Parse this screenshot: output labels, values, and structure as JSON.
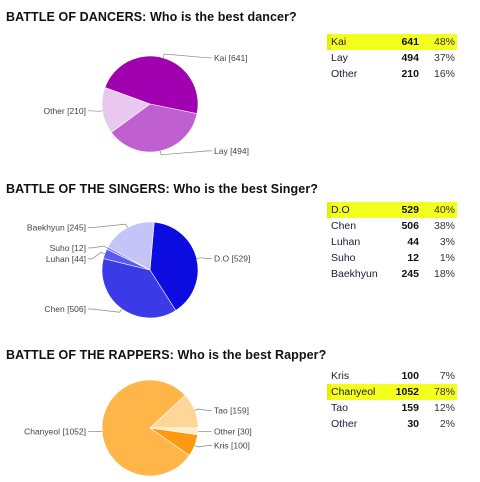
{
  "chart_data": [
    {
      "type": "pie",
      "title": "BATTLE OF DANCERS: Who is the best dancer?",
      "slices": [
        {
          "name": "Kai",
          "value": 641,
          "pct": "48%",
          "color": "#a000b0",
          "slice_label": "Kai [641]"
        },
        {
          "name": "Lay",
          "value": 494,
          "pct": "37%",
          "color": "#c060d0",
          "slice_label": "Lay [494]"
        },
        {
          "name": "Other",
          "value": 210,
          "pct": "16%",
          "color": "#e8c8ee",
          "slice_label": "Other [210]"
        }
      ],
      "highlighted": "Kai"
    },
    {
      "type": "pie",
      "title": "BATTLE OF THE SINGERS: Who is the best Singer?",
      "slices": [
        {
          "name": "D.O",
          "value": 529,
          "pct": "40%",
          "color": "#0c0ce0",
          "slice_label": "D.O [529]"
        },
        {
          "name": "Chen",
          "value": 506,
          "pct": "38%",
          "color": "#3a3ae6",
          "slice_label": "Chen [506]"
        },
        {
          "name": "Luhan",
          "value": 44,
          "pct": "3%",
          "color": "#5a5af0",
          "slice_label": "Luhan [44]"
        },
        {
          "name": "Suho",
          "value": 12,
          "pct": "1%",
          "color": "#8a8af4",
          "slice_label": "Suho [12]"
        },
        {
          "name": "Baekhyun",
          "value": 245,
          "pct": "18%",
          "color": "#c4c4f8",
          "slice_label": "Baekhyun [245]"
        }
      ],
      "highlighted": "D.O"
    },
    {
      "type": "pie",
      "title": "BATTLE OF THE RAPPERS: Who is the best Rapper?",
      "slices": [
        {
          "name": "Kris",
          "value": 100,
          "pct": "7%",
          "color": "#ff9a10",
          "slice_label": "Kris [100]"
        },
        {
          "name": "Chanyeol",
          "value": 1052,
          "pct": "78%",
          "color": "#ffb548",
          "slice_label": "Chanyeol [1052]"
        },
        {
          "name": "Tao",
          "value": 159,
          "pct": "12%",
          "color": "#ffd69a",
          "slice_label": "Tao [159]"
        },
        {
          "name": "Other",
          "value": 30,
          "pct": "2%",
          "color": "#ffecc8",
          "slice_label": "Other [30]"
        }
      ],
      "highlighted": "Chanyeol"
    }
  ]
}
